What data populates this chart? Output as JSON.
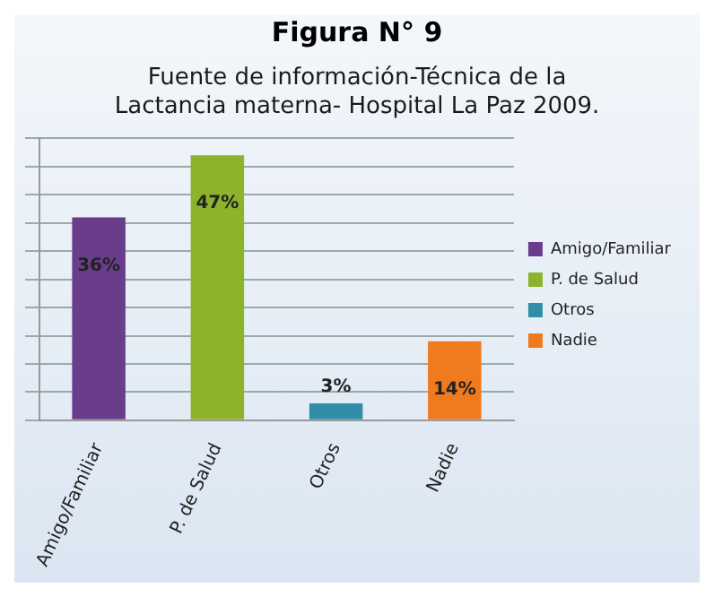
{
  "chart_data": {
    "type": "bar",
    "title": "Figura N° 9",
    "subtitle": "Fuente de información-Técnica de la Lactancia materna- Hospital La Paz 2009.",
    "categories": [
      "Amigo/Familiar",
      "P. de Salud",
      "Otros",
      "Nadie"
    ],
    "series": [
      {
        "name": "Amigo/Familiar",
        "color": "#6a3d8c",
        "values": [
          36,
          null,
          null,
          null
        ],
        "value_labels": [
          "36%",
          null,
          null,
          null
        ]
      },
      {
        "name": "P. de Salud",
        "color": "#8cb32b",
        "values": [
          null,
          47,
          null,
          null
        ],
        "value_labels": [
          null,
          "47%",
          null,
          null
        ]
      },
      {
        "name": "Otros",
        "color": "#2f8ea8",
        "values": [
          null,
          null,
          3,
          null
        ],
        "value_labels": [
          null,
          null,
          "3%",
          null
        ]
      },
      {
        "name": "Nadie",
        "color": "#f07a1e",
        "values": [
          null,
          null,
          null,
          14
        ],
        "value_labels": [
          null,
          null,
          null,
          "14%"
        ]
      }
    ],
    "grid": "y",
    "legend": "right",
    "tick_labels": "x"
  }
}
